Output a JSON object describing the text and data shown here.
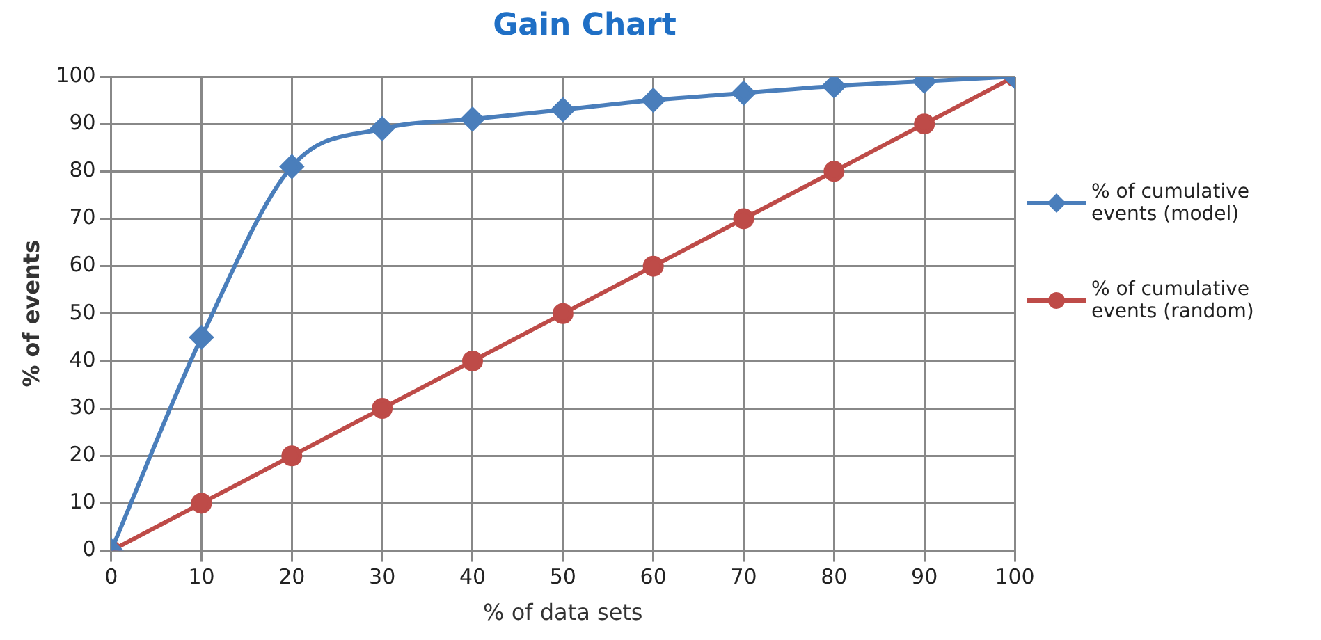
{
  "chart_data": {
    "type": "line",
    "title": "Gain Chart",
    "xlabel": "% of data sets",
    "ylabel": "% of events",
    "x": [
      0,
      10,
      20,
      30,
      40,
      50,
      60,
      70,
      80,
      90,
      100
    ],
    "series": [
      {
        "name": "% of cumulative events (model)",
        "color": "#4a7ebb",
        "marker": "diamond",
        "values": [
          0,
          45,
          81,
          89,
          91,
          93,
          95,
          96.5,
          98,
          99,
          100
        ]
      },
      {
        "name": "% of cumulative events (random)",
        "color": "#be4b48",
        "marker": "circle",
        "values": [
          0,
          10,
          20,
          30,
          40,
          50,
          60,
          70,
          80,
          90,
          100
        ]
      }
    ],
    "xlim": [
      0,
      100
    ],
    "xticks": [
      0,
      10,
      20,
      30,
      40,
      50,
      60,
      70,
      80,
      90,
      100
    ],
    "ylim": [
      0,
      100
    ],
    "yticks": [
      0,
      10,
      20,
      30,
      40,
      50,
      60,
      70,
      80,
      90,
      100
    ],
    "grid": true,
    "legend": "right"
  }
}
